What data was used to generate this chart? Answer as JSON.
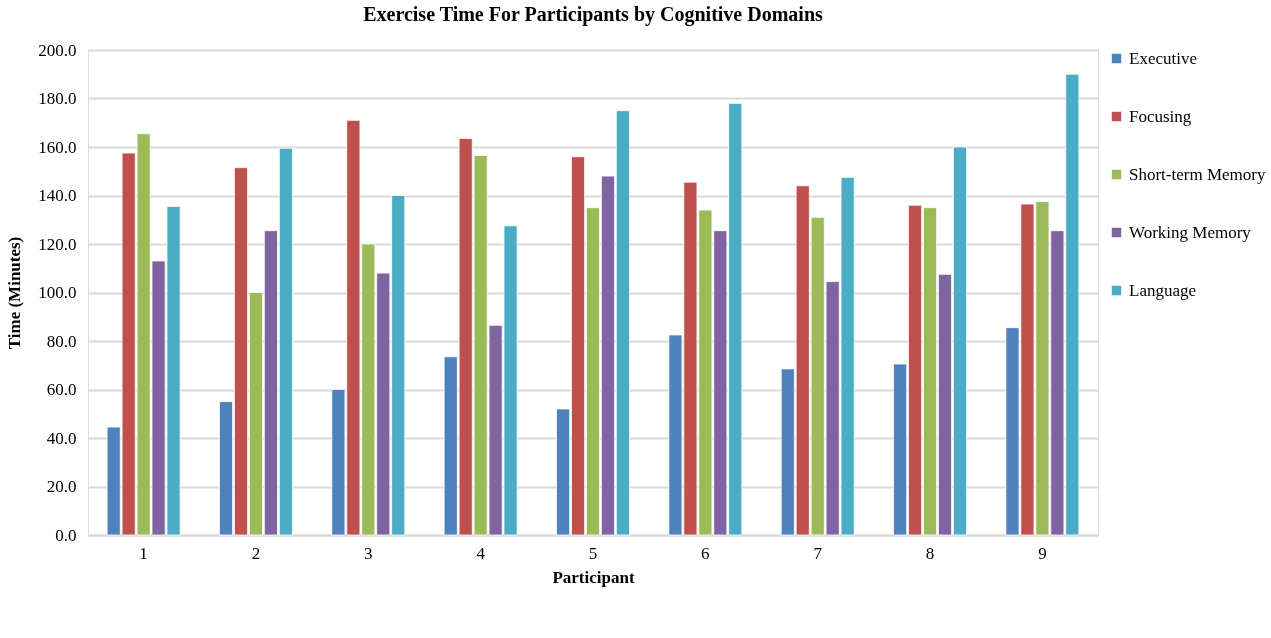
{
  "chart_data": {
    "type": "bar",
    "title": "Exercise Time For Participants by Cognitive Domains",
    "xlabel": "Participant",
    "ylabel": "Time (Minutes)",
    "categories": [
      "1",
      "2",
      "3",
      "4",
      "5",
      "6",
      "7",
      "8",
      "9"
    ],
    "series": [
      {
        "name": "Executive",
        "color": "#4f81bd",
        "values": [
          44.5,
          55,
          60,
          73.5,
          52,
          82.5,
          68.5,
          70.5,
          85.5
        ]
      },
      {
        "name": "Focusing",
        "color": "#c0504d",
        "values": [
          157.5,
          151.5,
          171,
          163.5,
          156,
          145.5,
          144,
          136,
          136.5
        ]
      },
      {
        "name": "Short-term Memory",
        "color": "#9bbb59",
        "values": [
          165.5,
          100,
          120,
          156.5,
          135,
          134,
          131,
          135,
          137.5
        ]
      },
      {
        "name": "Working Memory",
        "color": "#8064a2",
        "values": [
          113,
          125.5,
          108,
          86.5,
          148,
          125.5,
          104.5,
          107.5,
          125.5
        ]
      },
      {
        "name": "Language",
        "color": "#4bacc6",
        "values": [
          135.5,
          159.5,
          140,
          127.5,
          175,
          178,
          147.5,
          160,
          190
        ]
      }
    ],
    "ylim": [
      0,
      200
    ],
    "yticks": [
      {
        "value": 0,
        "label": "0.0"
      },
      {
        "value": 20,
        "label": "20.0"
      },
      {
        "value": 40,
        "label": "40.0"
      },
      {
        "value": 60,
        "label": "60.0"
      },
      {
        "value": 80,
        "label": "80.0"
      },
      {
        "value": 100,
        "label": "100.0"
      },
      {
        "value": 120,
        "label": "120.0"
      },
      {
        "value": 140,
        "label": "140.0"
      },
      {
        "value": 160,
        "label": "160.0"
      },
      {
        "value": 180,
        "label": "180.0"
      },
      {
        "value": 200,
        "label": "200.0"
      }
    ],
    "grid": "y",
    "legend": "right"
  }
}
